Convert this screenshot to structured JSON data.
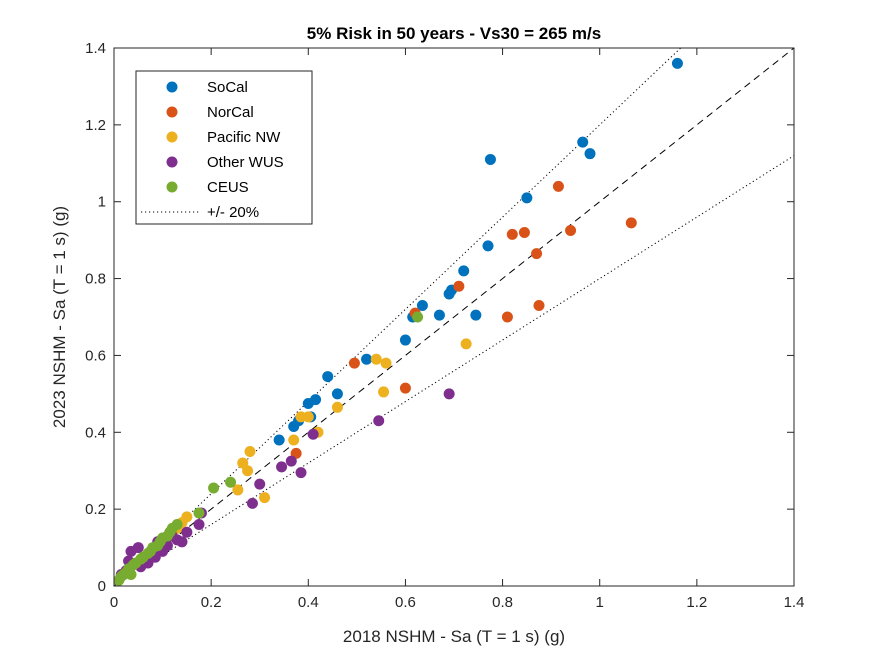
{
  "chart_data": {
    "type": "scatter",
    "title": "5% Risk in 50 years - Vs30 = 265 m/s",
    "xlabel": "2018 NSHM - Sa (T = 1 s) (g)",
    "ylabel": "2023 NSHM - Sa (T = 1 s) (g)",
    "xlim": [
      0,
      1.4
    ],
    "ylim": [
      0,
      1.4
    ],
    "xticks": [
      0,
      0.2,
      0.4,
      0.6,
      0.8,
      1,
      1.2,
      1.4
    ],
    "yticks": [
      0,
      0.2,
      0.4,
      0.6,
      0.8,
      1,
      1.2,
      1.4
    ],
    "xtick_labels": [
      "0",
      "0.2",
      "0.4",
      "0.6",
      "0.8",
      "1",
      "1.2",
      "1.4"
    ],
    "ytick_labels": [
      "0",
      "0.2",
      "0.4",
      "0.6",
      "0.8",
      "1",
      "1.2",
      "1.4"
    ],
    "grid": false,
    "legend_position": "top-left",
    "reference_lines": [
      {
        "name": "1:1",
        "slope": 1.0,
        "style": "dashed"
      },
      {
        "name": "+/- 20%",
        "slope": 1.2,
        "style": "dotted"
      },
      {
        "name": "+/- 20% lower",
        "slope": 0.8,
        "style": "dotted"
      }
    ],
    "series": [
      {
        "name": "SoCal",
        "color": "#0072BD",
        "points": [
          [
            1.16,
            1.36
          ],
          [
            0.965,
            1.155
          ],
          [
            0.98,
            1.125
          ],
          [
            0.775,
            1.11
          ],
          [
            0.85,
            1.01
          ],
          [
            0.77,
            0.885
          ],
          [
            0.72,
            0.82
          ],
          [
            0.695,
            0.77
          ],
          [
            0.69,
            0.76
          ],
          [
            0.635,
            0.73
          ],
          [
            0.67,
            0.705
          ],
          [
            0.745,
            0.705
          ],
          [
            0.615,
            0.7
          ],
          [
            0.6,
            0.64
          ],
          [
            0.52,
            0.59
          ],
          [
            0.44,
            0.545
          ],
          [
            0.46,
            0.5
          ],
          [
            0.415,
            0.485
          ],
          [
            0.4,
            0.475
          ],
          [
            0.405,
            0.44
          ],
          [
            0.38,
            0.43
          ],
          [
            0.37,
            0.415
          ],
          [
            0.34,
            0.38
          ]
        ]
      },
      {
        "name": "NorCal",
        "color": "#D95319",
        "points": [
          [
            0.915,
            1.04
          ],
          [
            0.82,
            0.915
          ],
          [
            0.845,
            0.92
          ],
          [
            0.94,
            0.925
          ],
          [
            1.065,
            0.945
          ],
          [
            0.87,
            0.865
          ],
          [
            0.71,
            0.78
          ],
          [
            0.81,
            0.7
          ],
          [
            0.875,
            0.73
          ],
          [
            0.62,
            0.71
          ],
          [
            0.495,
            0.58
          ],
          [
            0.6,
            0.515
          ],
          [
            0.375,
            0.345
          ]
        ]
      },
      {
        "name": "Pacific NW",
        "color": "#EDB120",
        "points": [
          [
            0.54,
            0.59
          ],
          [
            0.56,
            0.58
          ],
          [
            0.725,
            0.63
          ],
          [
            0.46,
            0.465
          ],
          [
            0.4,
            0.44
          ],
          [
            0.42,
            0.4
          ],
          [
            0.385,
            0.44
          ],
          [
            0.37,
            0.38
          ],
          [
            0.555,
            0.505
          ],
          [
            0.28,
            0.35
          ],
          [
            0.265,
            0.32
          ],
          [
            0.275,
            0.3
          ],
          [
            0.255,
            0.25
          ],
          [
            0.31,
            0.23
          ],
          [
            0.15,
            0.18
          ],
          [
            0.14,
            0.165
          ],
          [
            0.13,
            0.15
          ]
        ]
      },
      {
        "name": "Other WUS",
        "color": "#7E2F8E",
        "points": [
          [
            0.69,
            0.5
          ],
          [
            0.545,
            0.43
          ],
          [
            0.41,
            0.395
          ],
          [
            0.365,
            0.325
          ],
          [
            0.345,
            0.31
          ],
          [
            0.385,
            0.295
          ],
          [
            0.3,
            0.265
          ],
          [
            0.285,
            0.215
          ],
          [
            0.18,
            0.19
          ],
          [
            0.175,
            0.16
          ],
          [
            0.15,
            0.14
          ],
          [
            0.14,
            0.115
          ],
          [
            0.13,
            0.12
          ],
          [
            0.12,
            0.13
          ],
          [
            0.1,
            0.09
          ],
          [
            0.085,
            0.075
          ],
          [
            0.065,
            0.07
          ],
          [
            0.055,
            0.05
          ],
          [
            0.05,
            0.1
          ],
          [
            0.035,
            0.09
          ],
          [
            0.03,
            0.065
          ],
          [
            0.025,
            0.04
          ],
          [
            0.015,
            0.03
          ],
          [
            0.07,
            0.06
          ],
          [
            0.09,
            0.115
          ],
          [
            0.11,
            0.105
          ]
        ]
      },
      {
        "name": "CEUS",
        "color": "#77AC30",
        "points": [
          [
            0.625,
            0.7
          ],
          [
            0.24,
            0.27
          ],
          [
            0.205,
            0.255
          ],
          [
            0.175,
            0.19
          ],
          [
            0.13,
            0.16
          ],
          [
            0.12,
            0.15
          ],
          [
            0.115,
            0.14
          ],
          [
            0.11,
            0.13
          ],
          [
            0.1,
            0.125
          ],
          [
            0.095,
            0.115
          ],
          [
            0.09,
            0.105
          ],
          [
            0.08,
            0.1
          ],
          [
            0.075,
            0.09
          ],
          [
            0.07,
            0.085
          ],
          [
            0.06,
            0.075
          ],
          [
            0.055,
            0.07
          ],
          [
            0.045,
            0.06
          ],
          [
            0.04,
            0.055
          ],
          [
            0.03,
            0.045
          ],
          [
            0.025,
            0.035
          ],
          [
            0.02,
            0.03
          ],
          [
            0.015,
            0.025
          ],
          [
            0.01,
            0.015
          ],
          [
            0.035,
            0.03
          ]
        ]
      }
    ],
    "legend": [
      {
        "label": "SoCal",
        "color": "#0072BD",
        "marker": "dot"
      },
      {
        "label": "NorCal",
        "color": "#D95319",
        "marker": "dot"
      },
      {
        "label": "Pacific NW",
        "color": "#EDB120",
        "marker": "dot"
      },
      {
        "label": "Other WUS",
        "color": "#7E2F8E",
        "marker": "dot"
      },
      {
        "label": "CEUS",
        "color": "#77AC30",
        "marker": "dot"
      },
      {
        "label": "+/- 20%",
        "color": "#000000",
        "marker": "dotted-line"
      }
    ]
  }
}
